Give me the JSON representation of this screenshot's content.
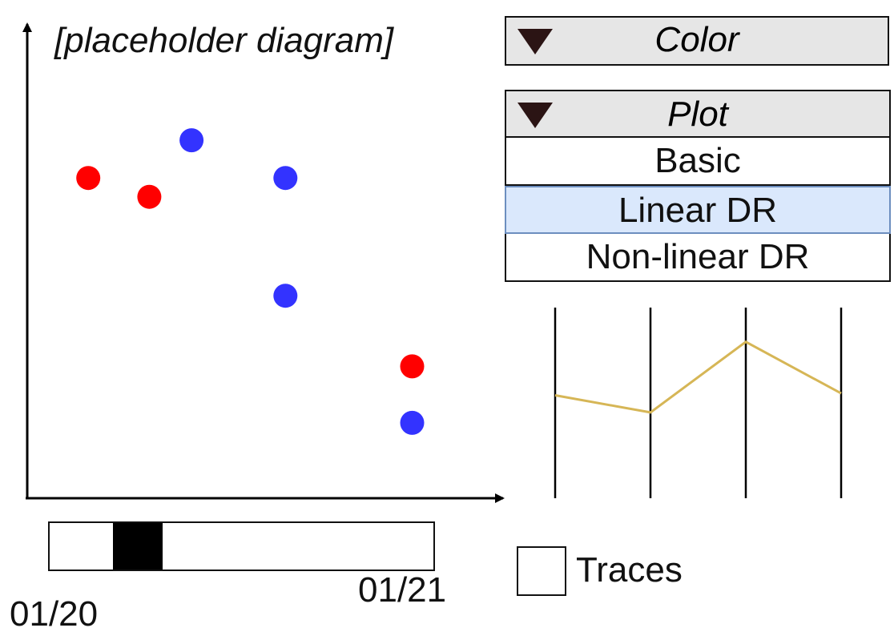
{
  "title": "[placeholder diagram]",
  "colors": {
    "red": "#ff0000",
    "blue": "#3333ff",
    "trace": "#d6b656"
  },
  "chart_data": {
    "type": "scatter",
    "title": "[placeholder diagram]",
    "xlim": [
      0,
      100
    ],
    "ylim": [
      0,
      100
    ],
    "series": [
      {
        "color": "red",
        "points": [
          [
            13,
            68
          ],
          [
            26,
            64
          ],
          [
            82,
            28
          ]
        ]
      },
      {
        "color": "blue",
        "points": [
          [
            35,
            76
          ],
          [
            55,
            68
          ],
          [
            55,
            43
          ],
          [
            82,
            16
          ]
        ]
      }
    ]
  },
  "color_panel": {
    "label": "Color",
    "icon": "triangle-down-icon"
  },
  "plot_panel": {
    "label": "Plot",
    "icon": "triangle-down-icon",
    "options": [
      "Basic",
      "Linear DR",
      "Non-linear DR"
    ],
    "selected": "Linear DR"
  },
  "parallel_coords": {
    "axes": 4,
    "values": [
      0.54,
      0.45,
      0.82,
      0.55
    ]
  },
  "time_slider": {
    "start": "01/20",
    "end": "01/21",
    "thumb_position": 0.18
  },
  "traces": {
    "label": "Traces",
    "checked": false
  }
}
